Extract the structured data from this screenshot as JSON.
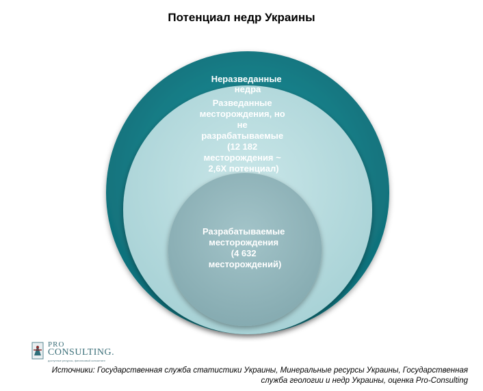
{
  "title": "Потенциал недр Украины",
  "colors": {
    "outer": "#15808a",
    "middle": "#b7dde0",
    "inner": "#93b7bd"
  },
  "circles": {
    "outer": {
      "label_lines": [
        "Неразведанные",
        "недра"
      ]
    },
    "middle": {
      "label_lines": [
        "Разведанные",
        "месторождения,  но",
        "не",
        "разрабатываемые",
        "(12 182",
        "месторождения  ~",
        "2,6X потенциал)"
      ]
    },
    "inner": {
      "label_lines": [
        "Разрабатываемые",
        "месторождения",
        "(4 632",
        "месторождений)"
      ]
    }
  },
  "logo": {
    "pro": "PRO",
    "consulting": "CONSULTING.",
    "tagline": "доступные ресурсы, финансовый консалтинг",
    "icon": "crest-logo-icon"
  },
  "sources": {
    "line1": "Источники: Государственная служба статистики Украины, Минеральные ресурсы Украины, Государственная",
    "line2": "служба геологии и недр Украины, оценка Pro-Consulting"
  }
}
